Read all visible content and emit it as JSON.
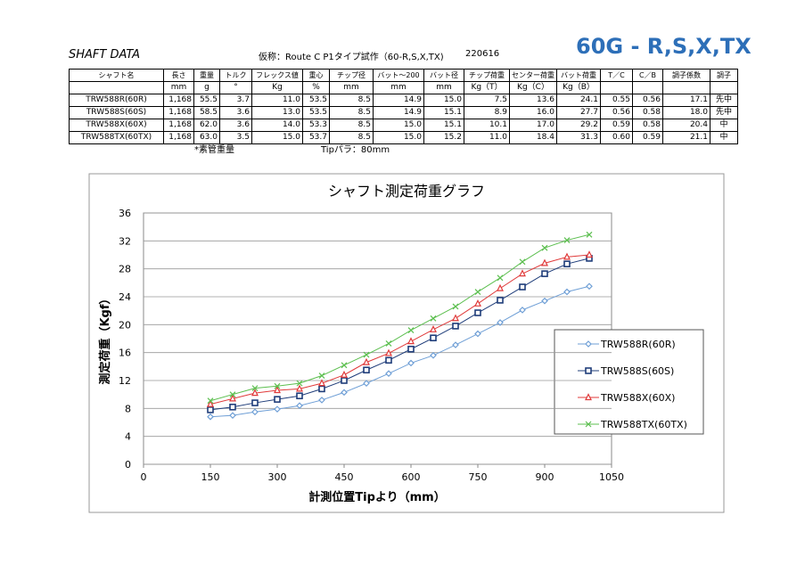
{
  "header": {
    "title": "SHAFT DATA",
    "subtitle": "仮称：Route C P1タイプ試作（60-R,S,X,TX)",
    "date": "220616",
    "badge": "60G - R,S,X,TX"
  },
  "table": {
    "columns": [
      "シャフト名",
      "長さ",
      "重量",
      "トルク",
      "フレックス値",
      "重心",
      "チップ径",
      "バット～200",
      "バット径",
      "チップ荷重",
      "センター荷重",
      "バット荷重",
      "T／C",
      "C／B",
      "調子係数",
      "調子"
    ],
    "units": [
      null,
      "mm",
      "g",
      "°",
      "Kg",
      "%",
      "mm",
      "mm",
      "mm",
      "Kg（T）",
      "Kg（C）",
      "Kg（B）",
      null,
      null,
      null,
      null
    ],
    "rows": [
      [
        "TRW588R(60R)",
        "1,168",
        "55.5",
        "3.7",
        "11.0",
        "53.5",
        "8.5",
        "14.9",
        "15.0",
        "7.5",
        "13.6",
        "24.1",
        "0.55",
        "0.56",
        "17.1",
        "先中"
      ],
      [
        "TRW588S(60S)",
        "1,168",
        "58.5",
        "3.6",
        "13.0",
        "53.5",
        "8.5",
        "14.9",
        "15.1",
        "8.9",
        "16.0",
        "27.7",
        "0.56",
        "0.58",
        "18.0",
        "先中"
      ],
      [
        "TRW588X(60X)",
        "1,168",
        "62.0",
        "3.6",
        "14.0",
        "53.3",
        "8.5",
        "15.0",
        "15.1",
        "10.1",
        "17.0",
        "29.2",
        "0.59",
        "0.58",
        "20.4",
        "中"
      ],
      [
        "TRW588TX(60TX)",
        "1,168",
        "63.0",
        "3.5",
        "15.0",
        "53.7",
        "8.5",
        "15.0",
        "15.2",
        "11.0",
        "18.4",
        "31.3",
        "0.60",
        "0.59",
        "21.1",
        "中"
      ]
    ],
    "notes": [
      "*素管重量",
      "Tipパラ：80mm"
    ]
  },
  "chart_data": {
    "type": "line",
    "title": "シャフト測定荷重グラフ",
    "x_label": "計測位置Tipより（mm）",
    "y_label": "測定荷重（Kgf）",
    "x": [
      150,
      200,
      250,
      300,
      350,
      400,
      450,
      500,
      550,
      600,
      650,
      700,
      750,
      800,
      850,
      900,
      950,
      1000
    ],
    "series": [
      {
        "name": "TRW588R(60R)",
        "color": "#6f9fd6",
        "marker": "diamond",
        "values": [
          6.8,
          7.0,
          7.5,
          7.9,
          8.4,
          9.2,
          10.3,
          11.6,
          13.0,
          14.5,
          15.6,
          17.1,
          18.7,
          20.3,
          22.1,
          23.4,
          24.7,
          25.5
        ]
      },
      {
        "name": "TRW588S(60S)",
        "color": "#1f3d7a",
        "marker": "square",
        "values": [
          7.8,
          8.2,
          8.8,
          9.3,
          9.8,
          10.8,
          12.0,
          13.5,
          14.9,
          16.5,
          18.1,
          19.8,
          21.7,
          23.5,
          25.4,
          27.3,
          28.7,
          29.5
        ]
      },
      {
        "name": "TRW588X(60X)",
        "color": "#e03a3a",
        "marker": "triangle",
        "values": [
          8.6,
          9.4,
          10.2,
          10.6,
          10.8,
          11.6,
          12.8,
          14.6,
          15.9,
          17.6,
          19.3,
          20.9,
          23.0,
          25.2,
          27.3,
          28.8,
          29.7,
          30.0
        ]
      },
      {
        "name": "TRW588TX(60TX)",
        "color": "#5cbf4f",
        "marker": "x",
        "values": [
          9.1,
          10.0,
          10.9,
          11.2,
          11.6,
          12.7,
          14.2,
          15.7,
          17.3,
          19.2,
          20.9,
          22.6,
          24.7,
          26.7,
          29.0,
          31.0,
          32.1,
          32.9
        ]
      }
    ],
    "xlim": [
      0,
      1050
    ],
    "xticks": [
      0,
      150,
      300,
      450,
      600,
      750,
      900,
      1050
    ],
    "ylim": [
      0,
      36
    ],
    "yticks": [
      0,
      4,
      8,
      12,
      16,
      20,
      24,
      28,
      32,
      36
    ],
    "grid": true
  }
}
